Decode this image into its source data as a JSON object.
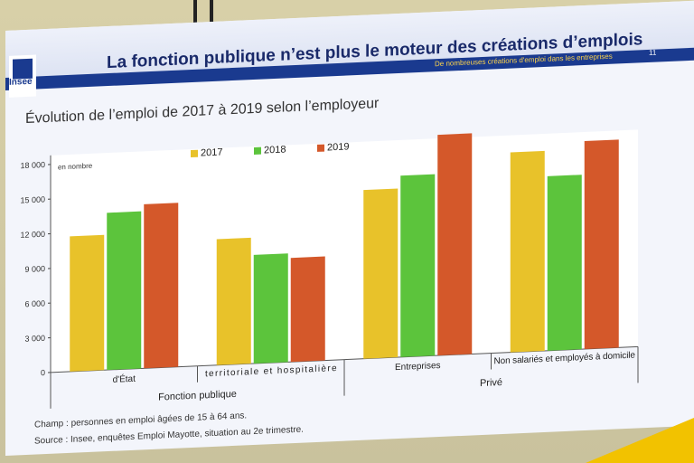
{
  "slide": {
    "title": "La fonction publique n’est plus le moteur des créations d’emplois",
    "tagline": "De nombreuses créations d'emploi dans les entreprises",
    "page_number": "11",
    "logo_text": "Insee"
  },
  "notes": {
    "champ": "Champ : personnes en emploi âgées de 15 à 64 ans.",
    "source": "Source : Insee, enquêtes Emploi Mayotte, situation au 2e trimestre."
  },
  "colors": {
    "accent": "#1a3a8f",
    "series_2017": "#e8c22a",
    "series_2018": "#5cc43c",
    "series_2019": "#d4582a"
  },
  "chart_data": {
    "type": "bar",
    "title": "Évolution de l’emploi de 2017 à 2019 selon l’employeur",
    "unit_label": "en nombre",
    "categories": [
      "d'État",
      "territoriale et hospitalière",
      "Entreprises",
      "Non salariés et employés à domicile"
    ],
    "groups": [
      {
        "label": "Fonction publique",
        "categories": [
          0,
          1
        ]
      },
      {
        "label": "Privé",
        "categories": [
          2,
          3
        ]
      }
    ],
    "series": [
      {
        "name": "2017",
        "values": [
          11700,
          10900,
          14600,
          17300
        ]
      },
      {
        "name": "2018",
        "values": [
          13600,
          9400,
          15700,
          15100
        ]
      },
      {
        "name": "2019",
        "values": [
          14200,
          9000,
          19100,
          18000
        ]
      }
    ],
    "ylim": [
      0,
      18000
    ],
    "yticks": [
      "0",
      "3 000",
      "6 000",
      "9 000",
      "12 000",
      "15 000",
      "18 000"
    ],
    "grid": false,
    "legend": "top"
  }
}
